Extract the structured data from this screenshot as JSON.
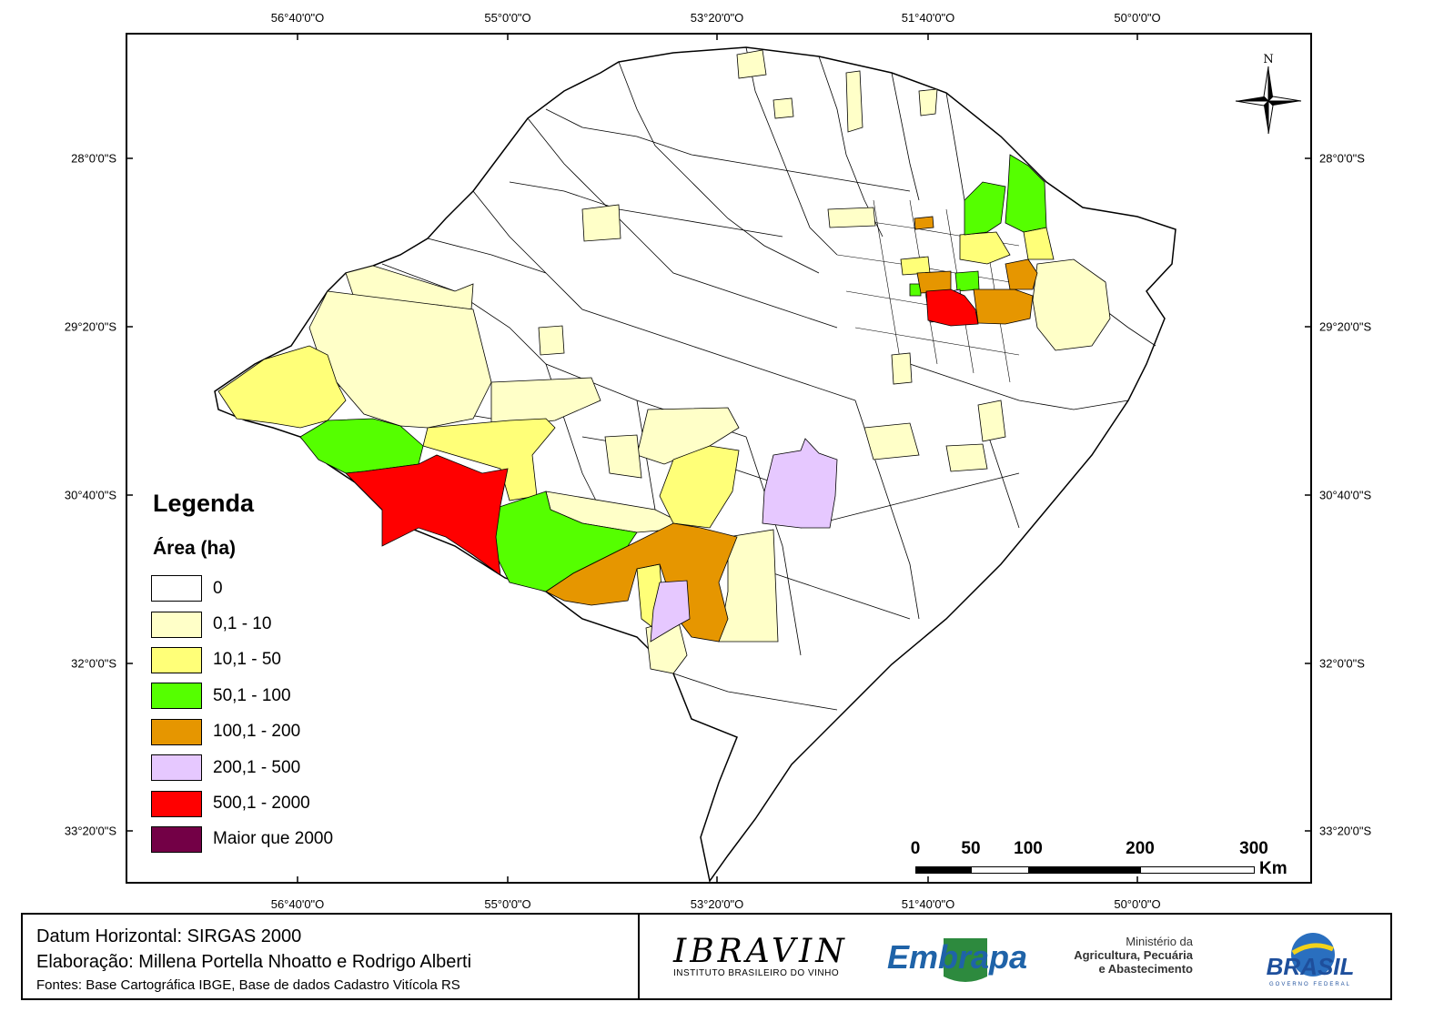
{
  "coords": {
    "top": [
      "56°40'0\"O",
      "55°0'0\"O",
      "53°20'0\"O",
      "51°40'0\"O",
      "50°0'0\"O"
    ],
    "bottom": [
      "56°40'0\"O",
      "55°0'0\"O",
      "53°20'0\"O",
      "51°40'0\"O",
      "50°0'0\"O"
    ],
    "left": [
      "28°0'0\"S",
      "29°20'0\"S",
      "30°40'0\"S",
      "32°0'0\"S",
      "33°20'0\"S"
    ],
    "right": [
      "28°0'0\"S",
      "29°20'0\"S",
      "30°40'0\"S",
      "32°0'0\"S",
      "33°20'0\"S"
    ]
  },
  "north": {
    "label": "N"
  },
  "legend": {
    "title": "Legenda",
    "subtitle": "Área (ha)",
    "items": [
      {
        "label": "0",
        "color": "#ffffff"
      },
      {
        "label": "0,1 - 10",
        "color": "#ffffc8"
      },
      {
        "label": "10,1 - 50",
        "color": "#ffff78"
      },
      {
        "label": "50,1 - 100",
        "color": "#55ff00"
      },
      {
        "label": "100,1 - 200",
        "color": "#e69600"
      },
      {
        "label": "200,1 - 500",
        "color": "#e6c8ff"
      },
      {
        "label": "500,1 - 2000",
        "color": "#ff0000"
      },
      {
        "label": "Maior que 2000",
        "color": "#730046"
      }
    ]
  },
  "scale_bar": {
    "labels": [
      "0",
      "50",
      "100",
      "200",
      "300"
    ],
    "unit": "Km"
  },
  "footer": {
    "datum": "Datum Horizontal: SIRGAS 2000",
    "elaboracao": "Elaboração: Millena Portella Nhoatto e Rodrigo Alberti",
    "fontes": "Fontes: Base Cartográfica IBGE, Base de dados Cadastro Vitícola RS"
  },
  "logos": {
    "ibravin_name": "IBRAVIN",
    "ibravin_sub": "INSTITUTO BRASILEIRO DO VINHO",
    "embrapa": "Embrapa",
    "ministerio": [
      "Ministério da",
      "Agricultura, Pecuária",
      "e Abastecimento"
    ],
    "brasil": "BRASIL",
    "brasil_sub": "GOVERNO FEDERAL"
  }
}
